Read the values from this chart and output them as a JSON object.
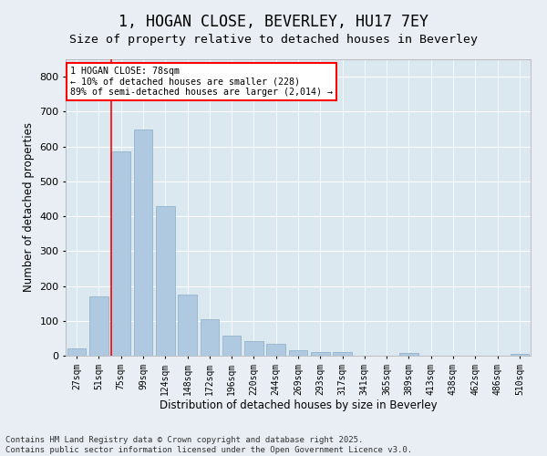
{
  "title": "1, HOGAN CLOSE, BEVERLEY, HU17 7EY",
  "subtitle": "Size of property relative to detached houses in Beverley",
  "xlabel": "Distribution of detached houses by size in Beverley",
  "ylabel": "Number of detached properties",
  "categories": [
    "27sqm",
    "51sqm",
    "75sqm",
    "99sqm",
    "124sqm",
    "148sqm",
    "172sqm",
    "196sqm",
    "220sqm",
    "244sqm",
    "269sqm",
    "293sqm",
    "317sqm",
    "341sqm",
    "365sqm",
    "389sqm",
    "413sqm",
    "438sqm",
    "462sqm",
    "486sqm",
    "510sqm"
  ],
  "values": [
    20,
    170,
    585,
    648,
    430,
    175,
    105,
    58,
    42,
    33,
    15,
    11,
    10,
    0,
    0,
    7,
    0,
    0,
    0,
    0,
    6
  ],
  "bar_color": "#aec9e0",
  "bar_edge_color": "#8aaec8",
  "vline_color": "red",
  "vline_x_index": 2,
  "annotation_text": "1 HOGAN CLOSE: 78sqm\n← 10% of detached houses are smaller (228)\n89% of semi-detached houses are larger (2,014) →",
  "annotation_box_color": "white",
  "annotation_box_edge": "red",
  "background_color": "#e8eef4",
  "plot_bg_color": "#dce8f0",
  "ylim": [
    0,
    850
  ],
  "yticks": [
    0,
    100,
    200,
    300,
    400,
    500,
    600,
    700,
    800
  ],
  "footer_line1": "Contains HM Land Registry data © Crown copyright and database right 2025.",
  "footer_line2": "Contains public sector information licensed under the Open Government Licence v3.0.",
  "title_fontsize": 12,
  "subtitle_fontsize": 9.5,
  "tick_fontsize": 7,
  "label_fontsize": 8.5,
  "footer_fontsize": 6.5
}
